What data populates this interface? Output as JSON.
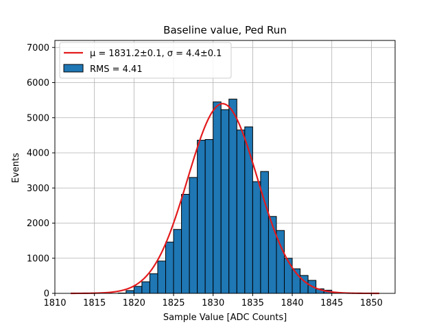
{
  "chart_data": {
    "type": "bar",
    "title": "Baseline value, Ped Run",
    "xlabel": "Sample Value [ADC Counts]",
    "ylabel": "Events",
    "xlim": [
      1810,
      1853
    ],
    "ylim": [
      0,
      7200
    ],
    "xticks": [
      1810,
      1815,
      1820,
      1825,
      1830,
      1835,
      1840,
      1845,
      1850
    ],
    "yticks": [
      0,
      1000,
      2000,
      3000,
      4000,
      5000,
      6000,
      7000
    ],
    "grid": true,
    "legend_position": "top-left",
    "histogram": {
      "name": "RMS = 4.41",
      "color": "#1f77b4",
      "edge_color": "#000000",
      "bin_edges": [
        1812,
        1813,
        1814,
        1815,
        1816,
        1817,
        1818,
        1819,
        1820,
        1821,
        1822,
        1823,
        1824,
        1825,
        1826,
        1827,
        1828,
        1829,
        1830,
        1831,
        1832,
        1833,
        1834,
        1835,
        1836,
        1837,
        1838,
        1839,
        1840,
        1841,
        1842,
        1843,
        1844,
        1845,
        1846,
        1847,
        1848,
        1849,
        1850,
        1851
      ],
      "counts": [
        0,
        0,
        0,
        0,
        0,
        0,
        10,
        80,
        200,
        330,
        560,
        920,
        1460,
        1820,
        2820,
        3300,
        4360,
        4380,
        5450,
        5230,
        5530,
        4650,
        4740,
        3180,
        3470,
        2190,
        1790,
        1000,
        700,
        510,
        370,
        130,
        90,
        30,
        10,
        0,
        0,
        0,
        0
      ]
    },
    "fit": {
      "name": "μ = 1831.2±0.1, σ = 4.4±0.1",
      "color": "#e31a1c",
      "mu": 1831.2,
      "sigma": 4.4,
      "amplitude": 5400,
      "x_range": [
        1812,
        1851
      ]
    }
  }
}
